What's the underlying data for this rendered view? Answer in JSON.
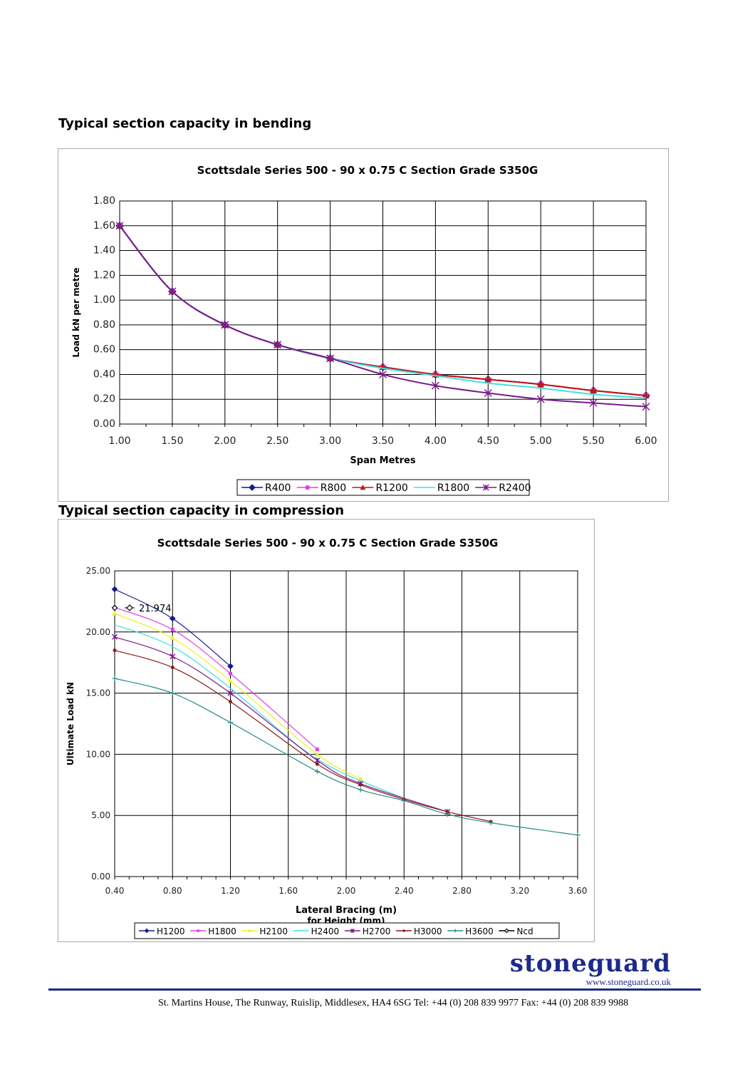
{
  "headings": {
    "bending": "Typical section capacity in bending",
    "compression": "Typical section capacity in compression"
  },
  "chart_data": [
    {
      "type": "line",
      "title": "Scottsdale Series 500 - 90 x 0.75 C Section Grade S350G",
      "xlabel": "Span Metres",
      "ylabel": "Load kN per metre",
      "xlim": [
        1.0,
        6.0
      ],
      "ylim": [
        0.0,
        1.8
      ],
      "xticks": [
        "1.00",
        "1.50",
        "2.00",
        "2.50",
        "3.00",
        "3.50",
        "4.00",
        "4.50",
        "5.00",
        "5.50",
        "6.00"
      ],
      "yticks": [
        "0.00",
        "0.20",
        "0.40",
        "0.60",
        "0.80",
        "1.00",
        "1.20",
        "1.40",
        "1.60",
        "1.80"
      ],
      "grid": true,
      "legend_position": "bottom",
      "x": [
        1.0,
        1.5,
        2.0,
        2.5,
        3.0,
        3.5,
        4.0,
        4.5,
        5.0,
        5.5,
        6.0
      ],
      "series": [
        {
          "name": "R400",
          "color": "#1a1a8c",
          "marker": "diamond",
          "values": [
            1.6,
            1.07,
            0.8,
            0.64,
            0.53,
            0.46,
            0.4,
            0.36,
            0.32,
            0.27,
            0.23
          ]
        },
        {
          "name": "R800",
          "color": "#e040e0",
          "marker": "square",
          "values": [
            1.6,
            1.07,
            0.8,
            0.64,
            0.53,
            0.46,
            0.4,
            0.36,
            0.32,
            0.27,
            0.23
          ]
        },
        {
          "name": "R1200",
          "color": "#c01818",
          "marker": "triangle",
          "values": [
            1.6,
            1.07,
            0.8,
            0.64,
            0.53,
            0.46,
            0.4,
            0.36,
            0.32,
            0.27,
            0.23
          ]
        },
        {
          "name": "R1800",
          "color": "#40e0e0",
          "marker": "none",
          "values": [
            1.6,
            1.07,
            0.8,
            0.64,
            0.53,
            0.45,
            0.39,
            0.33,
            0.29,
            0.24,
            0.21
          ]
        },
        {
          "name": "R2400",
          "color": "#7a1a8a",
          "marker": "star",
          "values": [
            1.6,
            1.07,
            0.8,
            0.64,
            0.53,
            0.4,
            0.31,
            0.25,
            0.2,
            0.17,
            0.14
          ]
        }
      ]
    },
    {
      "type": "line",
      "title": "Scottsdale Series 500 - 90 x 0.75 C Section Grade S350G",
      "xlabel": "Lateral Bracing (m)",
      "xlabel2": "for Height (mm)",
      "ylabel": "Ultimate Load kN",
      "xlim": [
        0.4,
        3.6
      ],
      "ylim": [
        0.0,
        25.0
      ],
      "xticks": [
        "0.40",
        "0.80",
        "1.20",
        "1.60",
        "2.00",
        "2.40",
        "2.80",
        "3.20",
        "3.60"
      ],
      "yticks": [
        "0.00",
        "5.00",
        "10.00",
        "15.00",
        "20.00",
        "25.00"
      ],
      "grid": true,
      "legend_position": "bottom",
      "annotation": {
        "text": "21.974",
        "x": 0.4,
        "y": 21.974
      },
      "series": [
        {
          "name": "H1200",
          "color": "#1a1a8c",
          "marker": "diamond",
          "points": [
            [
              0.4,
              23.5
            ],
            [
              0.8,
              21.1
            ],
            [
              1.2,
              17.2
            ]
          ]
        },
        {
          "name": "H1800",
          "color": "#e040e0",
          "marker": "square",
          "points": [
            [
              0.4,
              22.0
            ],
            [
              0.8,
              20.2
            ],
            [
              1.2,
              16.6
            ],
            [
              1.8,
              10.4
            ]
          ]
        },
        {
          "name": "H2100",
          "color": "#f0f020",
          "marker": "triangle",
          "points": [
            [
              0.4,
              21.5
            ],
            [
              0.8,
              19.5
            ],
            [
              1.2,
              16.0
            ],
            [
              1.8,
              10.0
            ],
            [
              2.1,
              8.0
            ]
          ]
        },
        {
          "name": "H2400",
          "color": "#40e0e0",
          "marker": "none",
          "points": [
            [
              0.4,
              20.6
            ],
            [
              0.8,
              18.8
            ],
            [
              1.2,
              15.4
            ],
            [
              1.8,
              9.6
            ],
            [
              2.4,
              6.4
            ]
          ]
        },
        {
          "name": "H2700",
          "color": "#7a1a8a",
          "marker": "star",
          "points": [
            [
              0.4,
              19.6
            ],
            [
              0.8,
              18.0
            ],
            [
              1.2,
              15.0
            ],
            [
              1.8,
              9.5
            ],
            [
              2.1,
              7.6
            ],
            [
              2.7,
              5.3
            ]
          ]
        },
        {
          "name": "H3000",
          "color": "#8a1a1a",
          "marker": "circle",
          "points": [
            [
              0.4,
              18.5
            ],
            [
              0.8,
              17.1
            ],
            [
              1.2,
              14.3
            ],
            [
              1.8,
              9.2
            ],
            [
              2.1,
              7.5
            ],
            [
              2.4,
              6.3
            ],
            [
              2.7,
              5.3
            ],
            [
              3.0,
              4.5
            ]
          ]
        },
        {
          "name": "H3600",
          "color": "#2a8a8a",
          "marker": "plus",
          "points": [
            [
              0.4,
              16.2
            ],
            [
              0.8,
              15.0
            ],
            [
              1.2,
              12.6
            ],
            [
              1.8,
              8.6
            ],
            [
              2.1,
              7.1
            ],
            [
              2.4,
              6.2
            ],
            [
              2.7,
              5.1
            ],
            [
              3.0,
              4.4
            ],
            [
              3.6,
              3.4
            ]
          ]
        },
        {
          "name": "Ncd",
          "color": "#000000",
          "marker": "open-diamond",
          "points": [
            [
              0.4,
              21.974
            ]
          ]
        }
      ]
    }
  ],
  "brand": {
    "name": "stoneguard",
    "url": "www.stoneguard.co.uk"
  },
  "footer": {
    "address": "St. Martins House, The Runway, Ruislip, Middlesex, HA4 6SG Tel: +44 (0) 208 839 9977 Fax: +44 (0) 208 839 9988"
  }
}
